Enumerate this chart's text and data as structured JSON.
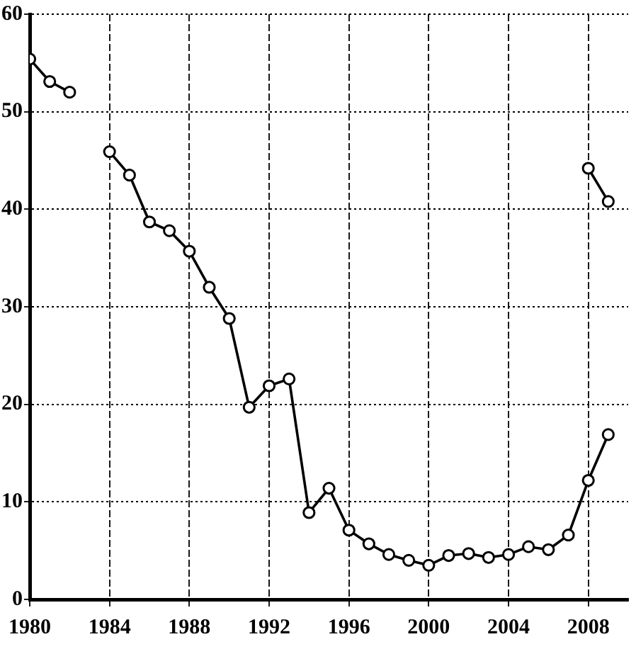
{
  "chart_data": {
    "type": "line",
    "x": [
      1980,
      1981,
      1982,
      1983,
      1984,
      1985,
      1986,
      1987,
      1988,
      1989,
      1990,
      1991,
      1992,
      1993,
      1994,
      1995,
      1996,
      1997,
      1998,
      1999,
      2000,
      2001,
      2002,
      2003,
      2004,
      2005,
      2006,
      2007,
      2008,
      2009
    ],
    "series": [
      {
        "color": "#000000",
        "values": [
          55.4,
          53.1,
          52.0,
          null,
          null,
          null,
          null,
          null,
          null,
          null,
          null,
          null,
          null,
          null,
          null,
          null,
          null,
          null,
          null,
          null,
          null,
          null,
          null,
          null,
          null,
          null,
          null,
          null,
          44.2,
          40.8
        ]
      },
      {
        "color": "#000000",
        "values": [
          null,
          null,
          null,
          null,
          45.9,
          43.5,
          38.7,
          37.8,
          35.7,
          32.0,
          28.8,
          19.7,
          21.9,
          22.6,
          8.9,
          11.4,
          7.1,
          5.7,
          4.6,
          4.0,
          3.5,
          4.5,
          4.7,
          4.3,
          4.6,
          5.4,
          5.1,
          6.6,
          12.2,
          16.9
        ]
      }
    ],
    "xlim": [
      1980,
      2010
    ],
    "xticks": [
      1980,
      1984,
      1988,
      1992,
      1996,
      2000,
      2004,
      2008
    ],
    "ylim": [
      0,
      60
    ],
    "yticks": [
      0,
      10,
      20,
      30,
      40,
      50,
      60
    ],
    "grid": true,
    "marker": "circle",
    "line_style": "solid"
  }
}
